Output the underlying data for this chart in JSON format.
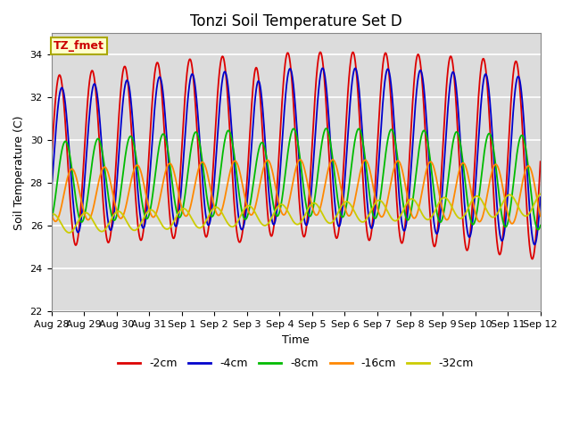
{
  "title": "Tonzi Soil Temperature Set D",
  "xlabel": "Time",
  "ylabel": "Soil Temperature (C)",
  "ylim": [
    22,
    35
  ],
  "xlim_days": [
    0,
    15
  ],
  "tick_labels": [
    "Aug 28",
    "Aug 29",
    "Aug 30",
    "Aug 31",
    "Sep 1",
    "Sep 2",
    "Sep 3",
    "Sep 4",
    "Sep 5",
    "Sep 6",
    "Sep 7",
    "Sep 8",
    "Sep 9",
    "Sep 10",
    "Sep 11",
    "Sep 12"
  ],
  "series_order": [
    "-2cm",
    "-4cm",
    "-8cm",
    "-16cm",
    "-32cm"
  ],
  "series": {
    "-2cm": {
      "color": "#dd0000",
      "label": "-2cm",
      "mean": 29.0,
      "amplitude": 4.0,
      "phase_shift": 0.0,
      "phase_lag": 0.0
    },
    "-4cm": {
      "color": "#0000cc",
      "label": "-4cm",
      "mean": 29.0,
      "amplitude": 3.4,
      "phase_shift": 0.0,
      "phase_lag": 0.07
    },
    "-8cm": {
      "color": "#00bb00",
      "label": "-8cm",
      "mean": 28.0,
      "amplitude": 1.9,
      "phase_shift": 0.0,
      "phase_lag": 0.18
    },
    "-16cm": {
      "color": "#ff8800",
      "label": "-16cm",
      "mean": 27.4,
      "amplitude": 1.2,
      "phase_shift": 0.0,
      "phase_lag": 0.38
    },
    "-32cm": {
      "color": "#cccc00",
      "label": "-32cm",
      "mean": 26.4,
      "amplitude": 0.45,
      "phase_shift": 0.0,
      "phase_lag": 0.8
    }
  },
  "legend_label": "TZ_fmet",
  "background_color": "#dcdcdc",
  "grid_color": "white",
  "title_fontsize": 12,
  "axis_fontsize": 9,
  "tick_fontsize": 8,
  "legend_fontsize": 9,
  "linewidth": 1.3
}
